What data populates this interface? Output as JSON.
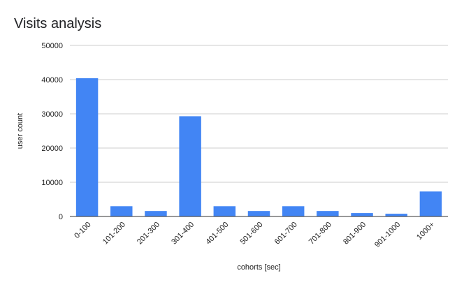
{
  "chart_data": {
    "type": "bar",
    "title": "Visits analysis",
    "xlabel": "cohorts [sec]",
    "ylabel": "user count",
    "categories": [
      "0-100",
      "101-200",
      "201-300",
      "301-400",
      "401-500",
      "501-600",
      "601-700",
      "701-800",
      "801-900",
      "901-1000",
      "1000+"
    ],
    "values": [
      40400,
      3000,
      1600,
      29300,
      3000,
      1600,
      3000,
      1600,
      1000,
      800,
      7300
    ],
    "ylim": [
      0,
      50000
    ],
    "yticks": [
      0,
      10000,
      20000,
      30000,
      40000,
      50000
    ],
    "grid": true,
    "bar_color": "#4285f4"
  }
}
